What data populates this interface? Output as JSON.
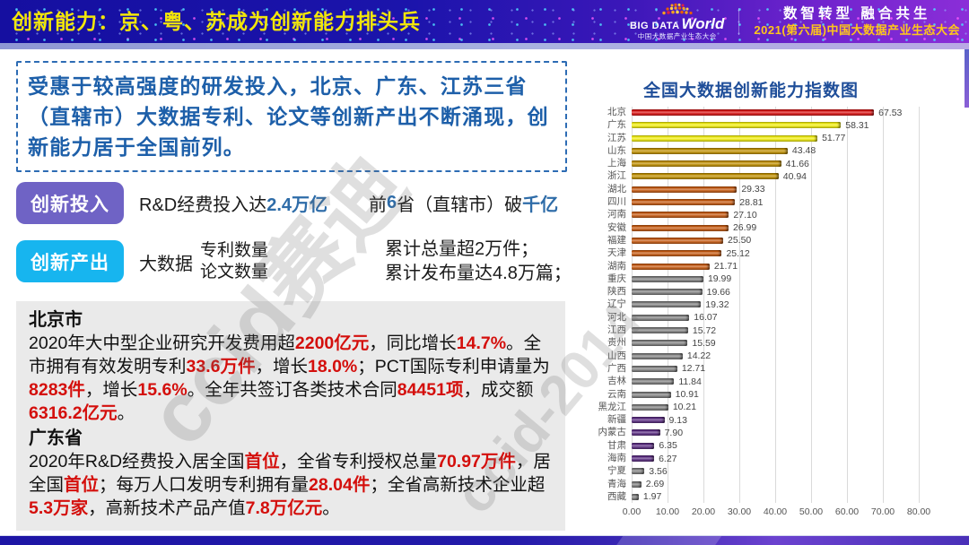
{
  "colors": {
    "accent_blue": "#1d5fa9",
    "highlight_red": "#d40f0c",
    "highlight_blue": "#2e6ca8",
    "badge_purple": "#6f63c5",
    "badge_cyan": "#17b5ef",
    "header_title_yellow": "#f2e60a"
  },
  "header": {
    "title": "创新能力：京、粤、苏成为创新能力排头兵",
    "logo_main": "BIG DATA",
    "logo_world": "World",
    "logo_sub": "中国大数据产业生态大会",
    "slogan": "数智转型 融合共生",
    "event": "2021(第六届)中国大数据产业生态大会"
  },
  "watermarks": {
    "wm1": "ccid赛迪",
    "wm2": "ccid-2014"
  },
  "intro": {
    "text": "受惠于较高强度的研发投入，北京、广东、江苏三省（直辖市）大数据专利、论文等创新产出不断涌现，创新能力居于全国前列。"
  },
  "investment": {
    "badge": "创新投入",
    "part1_pre": "R&D经费投入达",
    "part1_hl": "2.4万亿",
    "part2_pre": "前",
    "part2_hl1": "6",
    "part2_mid": "省（直辖市）破",
    "part2_hl2": "千亿"
  },
  "output": {
    "badge": "创新产出",
    "prefix": "大数据",
    "metric1": "专利数量",
    "metric2": "论文数量",
    "result1": "累计总量超2万件；",
    "result2": "累计发布量达4.8万篇；"
  },
  "beijing": {
    "title": "北京市",
    "segments": [
      {
        "t": "2020年大中型企业研究开发费用超"
      },
      {
        "t": "2200亿元",
        "hl": true
      },
      {
        "t": "，同比增长"
      },
      {
        "t": "14.7%",
        "hl": true
      },
      {
        "t": "。全市拥有有效发明专利"
      },
      {
        "t": "33.6万件",
        "hl": true
      },
      {
        "t": "，增长"
      },
      {
        "t": "18.0%",
        "hl": true
      },
      {
        "t": "；PCT国际专利申请量为"
      },
      {
        "t": "8283件",
        "hl": true
      },
      {
        "t": "，增长"
      },
      {
        "t": "15.6%",
        "hl": true
      },
      {
        "t": "。全年共签订各类技术合同"
      },
      {
        "t": "84451项",
        "hl": true
      },
      {
        "t": "，成交额"
      },
      {
        "t": "6316.2亿元",
        "hl": true
      },
      {
        "t": "。"
      }
    ]
  },
  "guangdong": {
    "title": "广东省",
    "segments": [
      {
        "t": "2020年R&D经费投入居全国"
      },
      {
        "t": "首位",
        "hl": true
      },
      {
        "t": "，全省专利授权总量"
      },
      {
        "t": "70.97万件",
        "hl": true
      },
      {
        "t": "，居全国"
      },
      {
        "t": "首位",
        "hl": true
      },
      {
        "t": "；每万人口发明专利拥有量"
      },
      {
        "t": "28.04件",
        "hl": true
      },
      {
        "t": "；全省高新技术企业超"
      },
      {
        "t": "5.3万家",
        "hl": true
      },
      {
        "t": "，高新技术产品产值"
      },
      {
        "t": "7.8万亿元",
        "hl": true
      },
      {
        "t": "。"
      }
    ]
  },
  "chart_data": {
    "type": "bar",
    "orientation": "horizontal",
    "title": "全国大数据创新能力指数图",
    "categories": [
      "北京",
      "广东",
      "江苏",
      "山东",
      "上海",
      "浙江",
      "湖北",
      "四川",
      "河南",
      "安徽",
      "福建",
      "天津",
      "湖南",
      "重庆",
      "陕西",
      "辽宁",
      "河北",
      "江西",
      "贵州",
      "山西",
      "广西",
      "吉林",
      "云南",
      "黑龙江",
      "新疆",
      "内蒙古",
      "甘肃",
      "海南",
      "宁夏",
      "青海",
      "西藏"
    ],
    "values": [
      67.53,
      58.31,
      51.77,
      43.48,
      41.66,
      40.94,
      29.33,
      28.81,
      27.1,
      26.99,
      25.5,
      25.12,
      21.71,
      19.99,
      19.66,
      19.32,
      16.07,
      15.72,
      15.59,
      14.22,
      12.71,
      11.84,
      10.91,
      10.21,
      9.13,
      7.9,
      6.35,
      6.27,
      3.56,
      2.69,
      1.97
    ],
    "colors": [
      "#d91414",
      "#f2ee0f",
      "#f2ee0f",
      "#bf8f00",
      "#bf8f00",
      "#bf8f00",
      "#c55a11",
      "#c55a11",
      "#c55a11",
      "#c55a11",
      "#c55a11",
      "#c55a11",
      "#c55a11",
      "#7f7f7f",
      "#7f7f7f",
      "#7f7f7f",
      "#7f7f7f",
      "#7f7f7f",
      "#7f7f7f",
      "#7f7f7f",
      "#7f7f7f",
      "#7f7f7f",
      "#7f7f7f",
      "#7f7f7f",
      "#5b2d82",
      "#5b2d82",
      "#5b2d82",
      "#5b2d82",
      "#7f7f7f",
      "#7f7f7f",
      "#7f7f7f"
    ],
    "xticks": [
      "0.00",
      "10.00",
      "20.00",
      "30.00",
      "40.00",
      "50.00",
      "60.00",
      "70.00",
      "80.00"
    ],
    "xlim": [
      0,
      89.5
    ],
    "grid": true,
    "value_labels": true,
    "legend": false
  }
}
